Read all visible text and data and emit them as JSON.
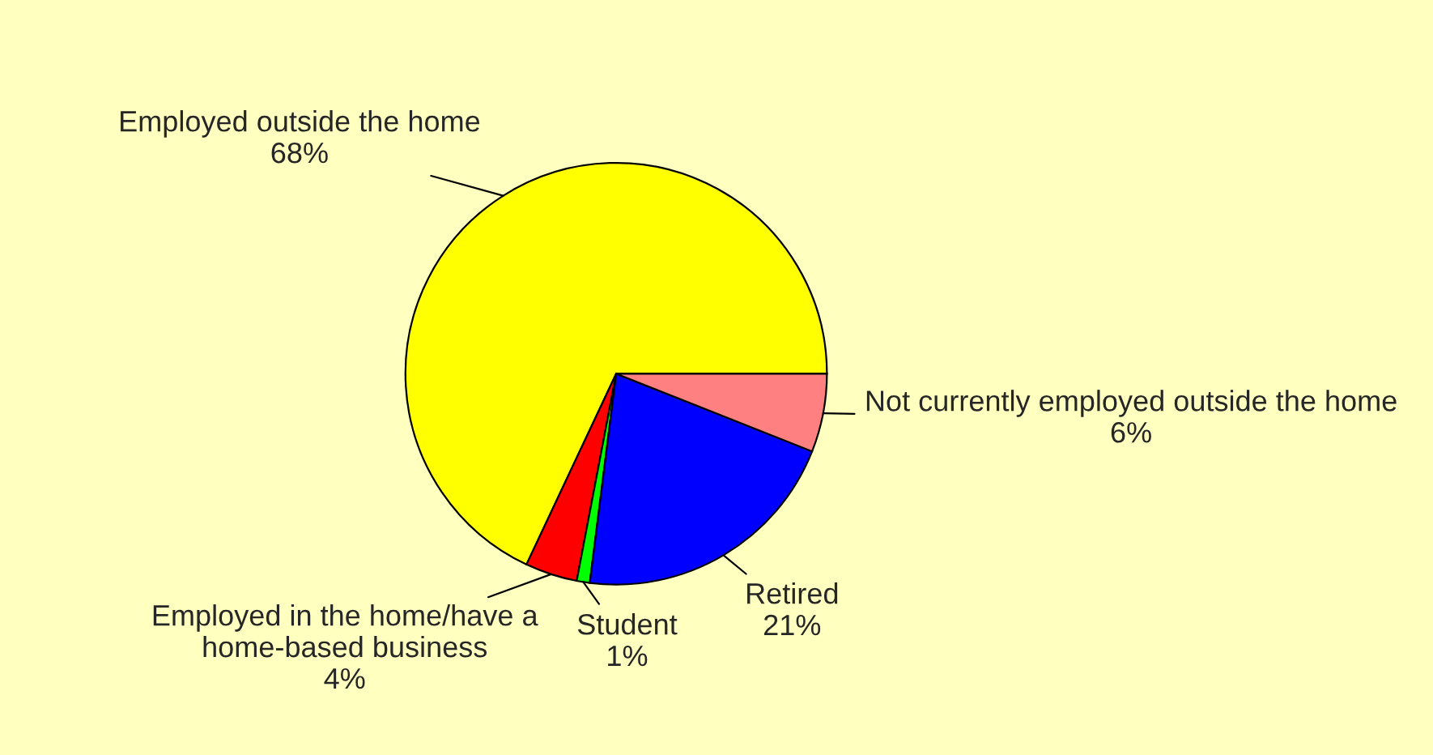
{
  "chart_data": {
    "type": "pie",
    "categories": [
      "Employed outside the home",
      "Employed in the home/have a home-based business",
      "Student",
      "Retired",
      "Not currently employed outside the home"
    ],
    "values": [
      68,
      4,
      1,
      21,
      6
    ],
    "value_labels": [
      "68%",
      "4%",
      "1%",
      "21%",
      "6%"
    ],
    "colors": [
      "#ffff00",
      "#ff0000",
      "#00ff00",
      "#0000ff",
      "#ff8080"
    ],
    "legend": false
  }
}
